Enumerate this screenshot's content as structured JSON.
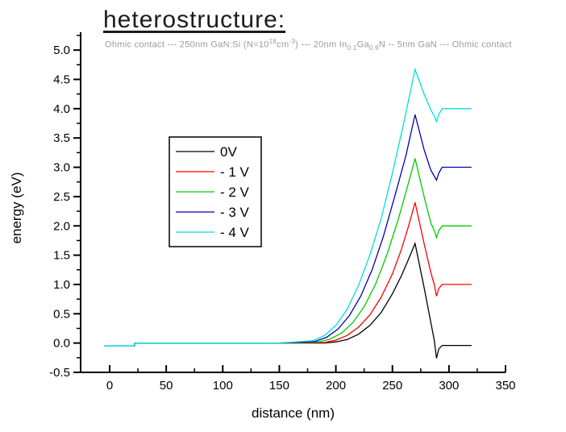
{
  "title": "heterostructure:",
  "subtitle_segments": [
    {
      "t": "Ohmic contact --- 250nm GaN:Si (N=10"
    },
    {
      "t": "18",
      "style": "sup"
    },
    {
      "t": "cm"
    },
    {
      "t": "-3",
      "style": "sup"
    },
    {
      "t": ") --- 20nm In"
    },
    {
      "t": "0.1",
      "style": "sub"
    },
    {
      "t": "Ga"
    },
    {
      "t": "0.9",
      "style": "sub"
    },
    {
      "t": "N -- 5nm GaN --- Ohmic contact"
    }
  ],
  "chart_data": {
    "type": "line",
    "title": "heterostructure:",
    "xlabel": "distance (nm)",
    "ylabel": "energy (eV)",
    "xlim": [
      -26,
      350
    ],
    "ylim": [
      -0.5,
      5.3
    ],
    "x_ticks": [
      0,
      50,
      100,
      150,
      200,
      250,
      300,
      350
    ],
    "y_ticks": [
      -0.5,
      0.0,
      0.5,
      1.0,
      1.5,
      2.0,
      2.5,
      3.0,
      3.5,
      4.0,
      4.5,
      5.0
    ],
    "x_minor_step": 25,
    "y_minor_step": 0.25,
    "grid": false,
    "legend_position": "upper-left-inside",
    "axis_color": "#000000",
    "legend": {
      "entries": [
        "0V",
        "- 1 V",
        "- 2 V",
        "- 3 V",
        "- 4 V"
      ]
    },
    "series": [
      {
        "name": "0V",
        "color": "#000000",
        "points": [
          [
            -5,
            -0.05
          ],
          [
            22,
            -0.05
          ],
          [
            22,
            0
          ],
          [
            150,
            0
          ],
          [
            190,
            0
          ],
          [
            200,
            0.02
          ],
          [
            210,
            0.06
          ],
          [
            220,
            0.15
          ],
          [
            230,
            0.3
          ],
          [
            240,
            0.52
          ],
          [
            250,
            0.84
          ],
          [
            258,
            1.15
          ],
          [
            264,
            1.42
          ],
          [
            270,
            1.7
          ],
          [
            278,
            0.95
          ],
          [
            284,
            0.35
          ],
          [
            287,
            0.05
          ],
          [
            289,
            -0.26
          ],
          [
            291,
            -0.1
          ],
          [
            294,
            -0.04
          ],
          [
            320,
            -0.04
          ]
        ]
      },
      {
        "name": "- 1 V",
        "color": "#ff0000",
        "points": [
          [
            -5,
            -0.05
          ],
          [
            22,
            -0.05
          ],
          [
            22,
            0
          ],
          [
            150,
            0
          ],
          [
            190,
            0.01
          ],
          [
            200,
            0.05
          ],
          [
            210,
            0.13
          ],
          [
            220,
            0.27
          ],
          [
            230,
            0.48
          ],
          [
            240,
            0.78
          ],
          [
            250,
            1.18
          ],
          [
            258,
            1.6
          ],
          [
            264,
            1.98
          ],
          [
            270,
            2.4
          ],
          [
            278,
            1.7
          ],
          [
            284,
            1.2
          ],
          [
            287,
            1.0
          ],
          [
            289,
            0.8
          ],
          [
            291,
            0.93
          ],
          [
            294,
            1.0
          ],
          [
            320,
            1.0
          ]
        ]
      },
      {
        "name": "- 2 V",
        "color": "#00cc00",
        "points": [
          [
            -5,
            -0.05
          ],
          [
            22,
            -0.05
          ],
          [
            22,
            0
          ],
          [
            150,
            0
          ],
          [
            185,
            0.02
          ],
          [
            195,
            0.07
          ],
          [
            205,
            0.17
          ],
          [
            215,
            0.35
          ],
          [
            225,
            0.62
          ],
          [
            235,
            1.0
          ],
          [
            245,
            1.5
          ],
          [
            255,
            2.1
          ],
          [
            263,
            2.65
          ],
          [
            270,
            3.15
          ],
          [
            278,
            2.5
          ],
          [
            284,
            2.05
          ],
          [
            287,
            1.92
          ],
          [
            289,
            1.8
          ],
          [
            291,
            1.92
          ],
          [
            294,
            2.0
          ],
          [
            320,
            2.0
          ]
        ]
      },
      {
        "name": "- 3 V",
        "color": "#0000bb",
        "points": [
          [
            -5,
            -0.05
          ],
          [
            22,
            -0.05
          ],
          [
            22,
            0
          ],
          [
            150,
            0
          ],
          [
            182,
            0.03
          ],
          [
            192,
            0.1
          ],
          [
            202,
            0.24
          ],
          [
            212,
            0.47
          ],
          [
            222,
            0.8
          ],
          [
            232,
            1.25
          ],
          [
            242,
            1.82
          ],
          [
            252,
            2.5
          ],
          [
            262,
            3.2
          ],
          [
            270,
            3.9
          ],
          [
            278,
            3.3
          ],
          [
            284,
            2.95
          ],
          [
            287,
            2.85
          ],
          [
            289,
            2.78
          ],
          [
            291,
            2.9
          ],
          [
            294,
            3.0
          ],
          [
            320,
            3.0
          ]
        ]
      },
      {
        "name": "- 4 V",
        "color": "#00dede",
        "points": [
          [
            -5,
            -0.05
          ],
          [
            22,
            -0.05
          ],
          [
            22,
            0
          ],
          [
            150,
            0
          ],
          [
            180,
            0.04
          ],
          [
            190,
            0.13
          ],
          [
            200,
            0.3
          ],
          [
            210,
            0.58
          ],
          [
            220,
            0.98
          ],
          [
            230,
            1.5
          ],
          [
            240,
            2.12
          ],
          [
            250,
            2.9
          ],
          [
            260,
            3.75
          ],
          [
            270,
            4.67
          ],
          [
            278,
            4.25
          ],
          [
            284,
            3.98
          ],
          [
            287,
            3.88
          ],
          [
            289,
            3.78
          ],
          [
            291,
            3.9
          ],
          [
            294,
            4.0
          ],
          [
            320,
            4.0
          ]
        ]
      }
    ]
  }
}
